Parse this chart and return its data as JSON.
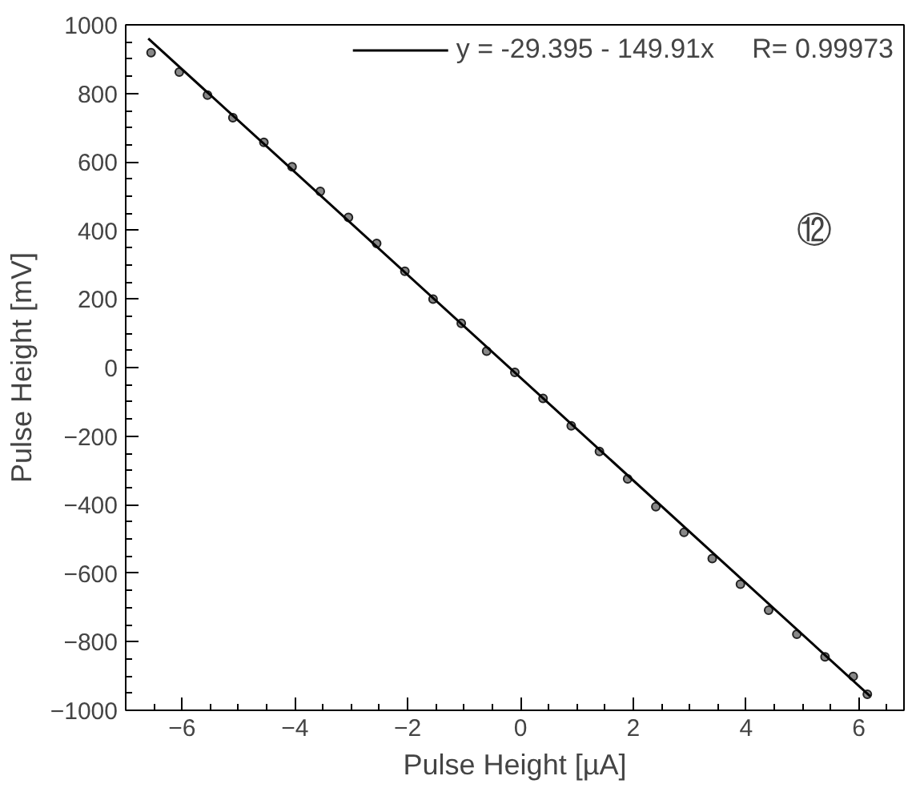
{
  "chart_data": {
    "type": "scatter",
    "xlabel": "Pulse Height [µA]",
    "ylabel": "Pulse Height [mV]",
    "xlim": [
      -7,
      6.8
    ],
    "ylim": [
      -1000,
      1000
    ],
    "xticks": [
      -6,
      -4,
      -2,
      0,
      2,
      4,
      6
    ],
    "yticks": [
      -1000,
      -800,
      -600,
      -400,
      -200,
      0,
      200,
      400,
      600,
      800,
      1000
    ],
    "grid": false,
    "marker": "circle",
    "legend": "top right",
    "annotations": [
      "⑫"
    ],
    "series": [
      {
        "color": "#222222",
        "x": [
          -6.55,
          -6.05,
          -5.55,
          -5.1,
          -4.55,
          -4.05,
          -3.55,
          -3.05,
          -2.55,
          -2.05,
          -1.55,
          -1.05,
          -0.6,
          -0.1,
          0.4,
          0.9,
          1.4,
          1.9,
          2.4,
          2.9,
          3.4,
          3.9,
          4.4,
          4.9,
          5.4,
          5.9,
          6.15
        ],
        "values": [
          919,
          862,
          795,
          729,
          657,
          586,
          514,
          438,
          362,
          281,
          200,
          129,
          48,
          -14,
          -90,
          -170,
          -245,
          -325,
          -406,
          -481,
          -557,
          -632,
          -708,
          -778,
          -844,
          -901,
          -953
        ]
      },
      {
        "type": "line",
        "name": "y = -29.395 - 149.91x     R= 0.99973",
        "color": "#000000",
        "marker": "none",
        "x": [
          -6.6,
          6.2
        ],
        "values": [
          960,
          -959
        ]
      }
    ]
  }
}
